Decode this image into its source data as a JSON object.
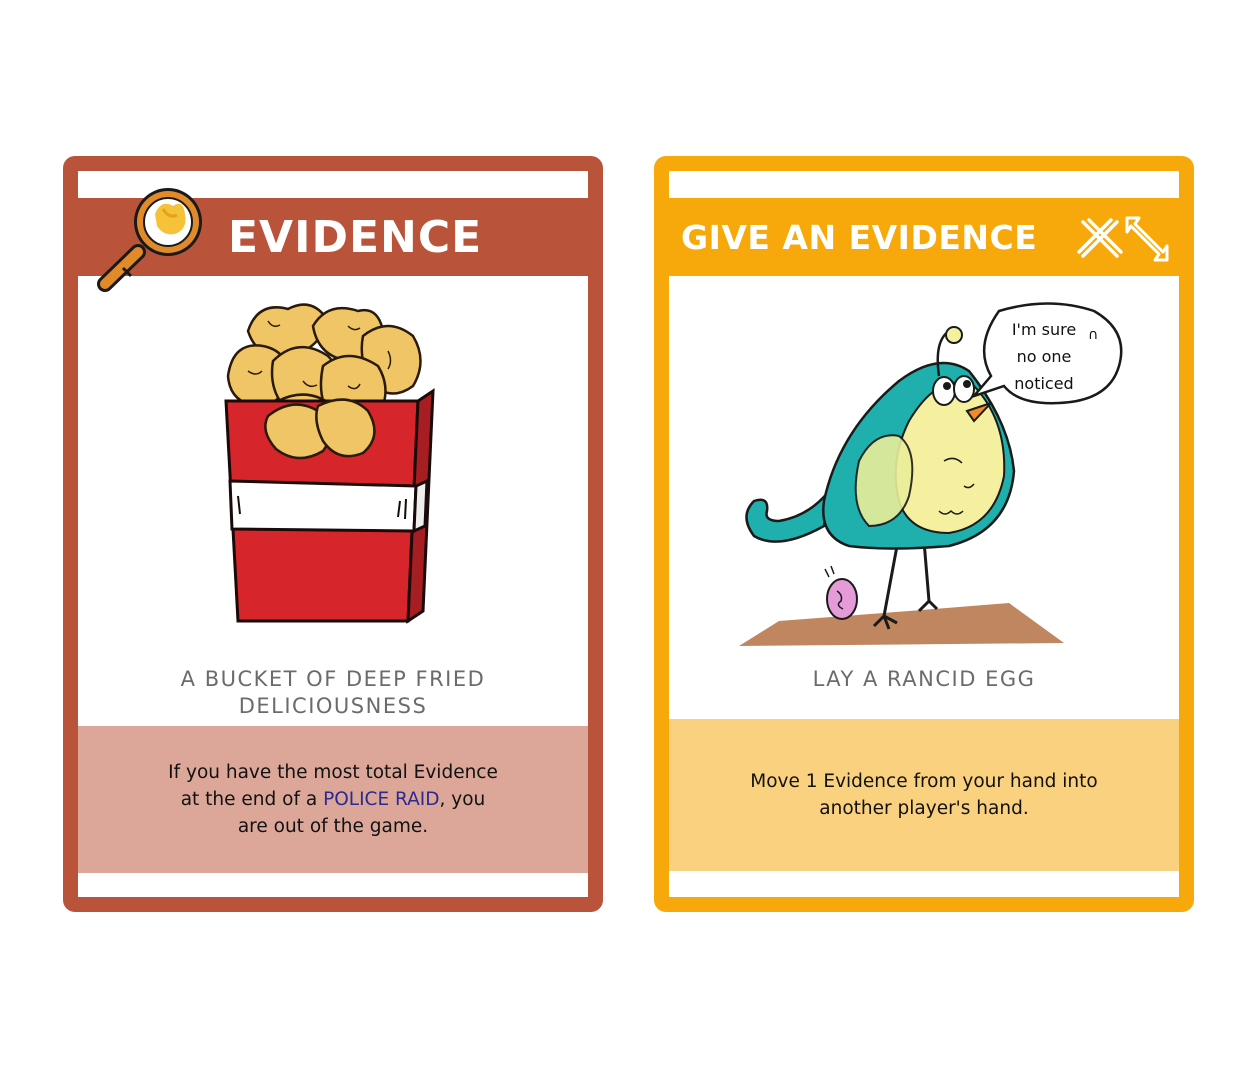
{
  "cards": [
    {
      "title": "EVIDENCE",
      "subtitle_line1": "A BUCKET OF DEEP FRIED",
      "subtitle_line2": "DELICIOUSNESS",
      "rule_line1": "If you have the most total Evidence",
      "rule_line2_pre": "at the end of a ",
      "rule_keyword": "POLICE RAID",
      "rule_line2_post": ", you",
      "rule_line3": "are out of the game.",
      "frame_color": "#b9543b",
      "rule_bg": "#dca799",
      "icon": "magnifying-glass-icon",
      "illustration": "fried-chicken-bucket"
    },
    {
      "title": "GIVE AN EVIDENCE",
      "subtitle": "LAY A RANCID EGG",
      "rule_line1": "Move 1 Evidence from your hand into",
      "rule_line2": "another player's hand.",
      "speech_line1": "I'm sure",
      "speech_line2": "no one",
      "speech_line3": "noticed",
      "frame_color": "#f7a90b",
      "rule_bg": "#f9d17f",
      "icon": "cross-swap-arrow-icon",
      "illustration": "bird-laying-egg"
    }
  ]
}
